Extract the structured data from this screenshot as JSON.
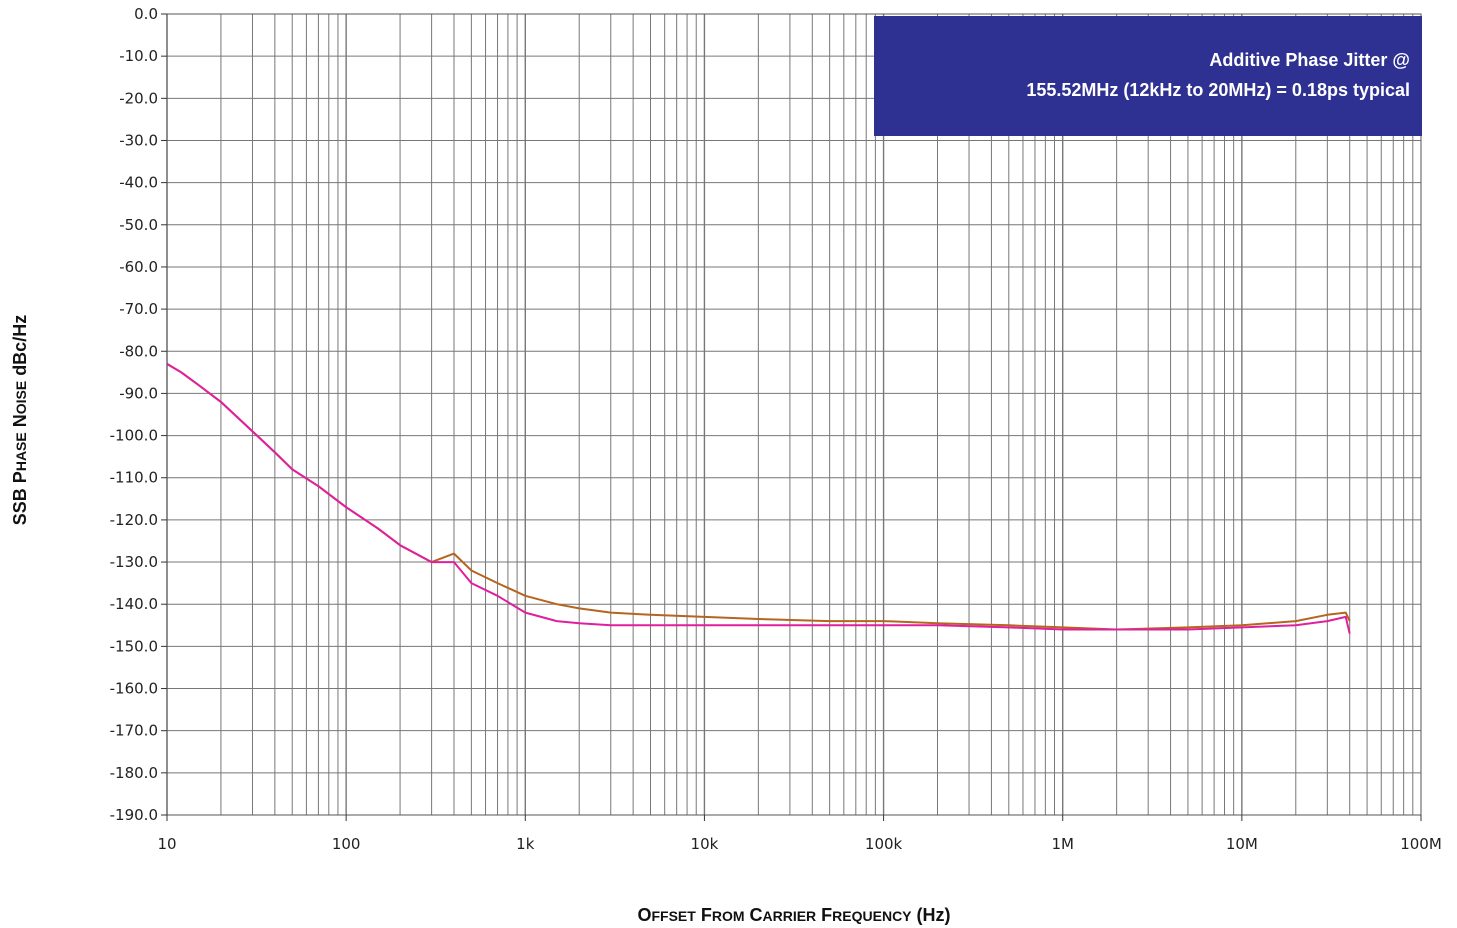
{
  "chart_data": {
    "type": "line",
    "title": "",
    "xlabel": "Offset From Carrier Frequency (Hz)",
    "ylabel": "SSB Phase Noise dBc/Hz",
    "x_scale": "log",
    "xlim": [
      10,
      100000000
    ],
    "ylim": [
      -190,
      0
    ],
    "grid": true,
    "x_tick_values": [
      10,
      100,
      1000,
      10000,
      100000,
      1000000,
      10000000,
      100000000
    ],
    "x_tick_labels": [
      "10",
      "100",
      "1k",
      "10k",
      "100k",
      "1M",
      "10M",
      "100M"
    ],
    "y_tick_values": [
      0,
      -10,
      -20,
      -30,
      -40,
      -50,
      -60,
      -70,
      -80,
      -90,
      -100,
      -110,
      -120,
      -130,
      -140,
      -150,
      -160,
      -170,
      -180,
      -190
    ],
    "y_tick_labels": [
      "0.0",
      "-10.0",
      "-20.0",
      "-30.0",
      "-40.0",
      "-50.0",
      "-60.0",
      "-70.0",
      "-80.0",
      "-90.0",
      "-100.0",
      "-110.0",
      "-120.0",
      "-130.0",
      "-140.0",
      "-150.0",
      "-160.0",
      "-170.0",
      "-180.0",
      "-190.0"
    ],
    "annotation": {
      "line1": "Additive Phase Jitter @",
      "line2": "155.52MHz (12kHz to 20MHz) = 0.18ps typical",
      "background": "#2e3192",
      "text_color": "#ffffff"
    },
    "series": [
      {
        "color": "#b5651d",
        "x": [
          10,
          12,
          15,
          20,
          30,
          40,
          50,
          70,
          100,
          150,
          200,
          300,
          400,
          500,
          700,
          1000,
          1500,
          2000,
          3000,
          5000,
          10000,
          20000,
          50000,
          100000,
          200000,
          500000,
          1000000,
          2000000,
          5000000,
          10000000,
          20000000,
          30000000,
          38000000,
          40000000
        ],
        "y": [
          -83,
          -85,
          -88,
          -92,
          -99,
          -104,
          -108,
          -112,
          -117,
          -122,
          -126,
          -130,
          -128,
          -132,
          -135,
          -138,
          -140,
          -141,
          -142,
          -142.5,
          -143,
          -143.5,
          -144,
          -144,
          -144.5,
          -145,
          -145.5,
          -146,
          -145.5,
          -145,
          -144,
          -142.5,
          -142,
          -144
        ]
      },
      {
        "color": "#e01f9f",
        "x": [
          10,
          12,
          15,
          20,
          30,
          40,
          50,
          70,
          100,
          150,
          200,
          300,
          400,
          500,
          700,
          1000,
          1500,
          2000,
          3000,
          5000,
          10000,
          20000,
          50000,
          100000,
          200000,
          500000,
          1000000,
          2000000,
          5000000,
          10000000,
          20000000,
          30000000,
          38000000,
          40000000
        ],
        "y": [
          -83,
          -85,
          -88,
          -92,
          -99,
          -104,
          -108,
          -112,
          -117,
          -122,
          -126,
          -130,
          -130,
          -135,
          -138,
          -142,
          -144,
          -144.5,
          -145,
          -145,
          -145,
          -145,
          -145,
          -145,
          -145,
          -145.5,
          -146,
          -146,
          -146,
          -145.5,
          -145,
          -144,
          -143,
          -147
        ]
      }
    ]
  }
}
